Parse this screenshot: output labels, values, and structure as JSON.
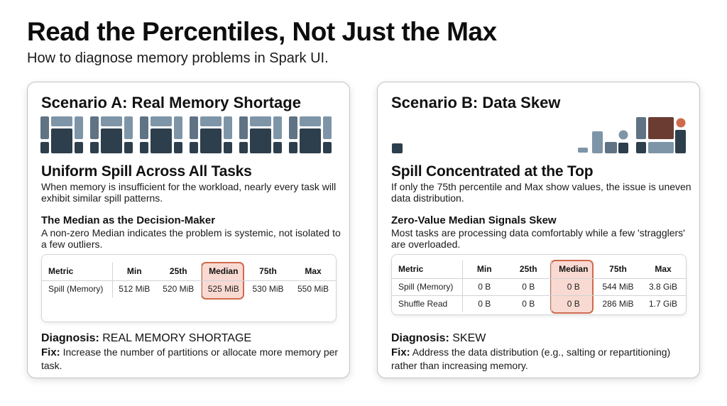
{
  "title": "Read the Percentiles, Not Just the Max",
  "subtitle": "How to diagnose memory problems in Spark UI.",
  "colors": {
    "dark": "#2d3e4c",
    "mid": "#5f7384",
    "light": "#7e95a8",
    "accent_brown": "#6b3c32",
    "accent_orange": "#cf6a4c",
    "highlight_fill": "#f2b8a5"
  },
  "scenario_a": {
    "title": "Scenario A: Real Memory Shortage",
    "heading": "Uniform Spill Across All Tasks",
    "description": "When memory is insufficient for the workload, nearly every task will exhibit similar spill patterns.",
    "subheading": "The Median as the Decision-Maker",
    "subdescription": "A non-zero Median indicates the problem is systemic, not isolated to a few outliers.",
    "table": {
      "headers": [
        "Metric",
        "Min",
        "25th",
        "Median",
        "75th",
        "Max"
      ],
      "rows": [
        [
          "Spill (Memory)",
          "512 MiB",
          "520 MiB",
          "525 MiB",
          "530 MiB",
          "550 MiB"
        ]
      ]
    },
    "diagnosis_label": "Diagnosis:",
    "diagnosis_value": "REAL MEMORY SHORTAGE",
    "fix_label": "Fix:",
    "fix_text": "Increase the number of partitions or allocate more memory per task."
  },
  "scenario_b": {
    "title": "Scenario B: Data Skew",
    "heading": "Spill Concentrated at the Top",
    "description": "If only the 75th percentile and Max show values, the issue is uneven data distribution.",
    "subheading": "Zero-Value Median Signals Skew",
    "subdescription": "Most tasks are processing data comfortably while a few 'stragglers' are overloaded.",
    "table": {
      "headers": [
        "Metric",
        "Min",
        "25th",
        "Median",
        "75th",
        "Max"
      ],
      "rows": [
        [
          "Spill (Memory)",
          "0 B",
          "0 B",
          "0 B",
          "544 MiB",
          "3.8 GiB"
        ],
        [
          "Shuffle Read",
          "0 B",
          "0 B",
          "0 B",
          "286 MiB",
          "1.7 GiB"
        ]
      ]
    },
    "diagnosis_label": "Diagnosis:",
    "diagnosis_value": "SKEW",
    "fix_label": "Fix:",
    "fix_text": "Address the data distribution (e.g., salting or repartitioning) rather than increasing memory."
  }
}
